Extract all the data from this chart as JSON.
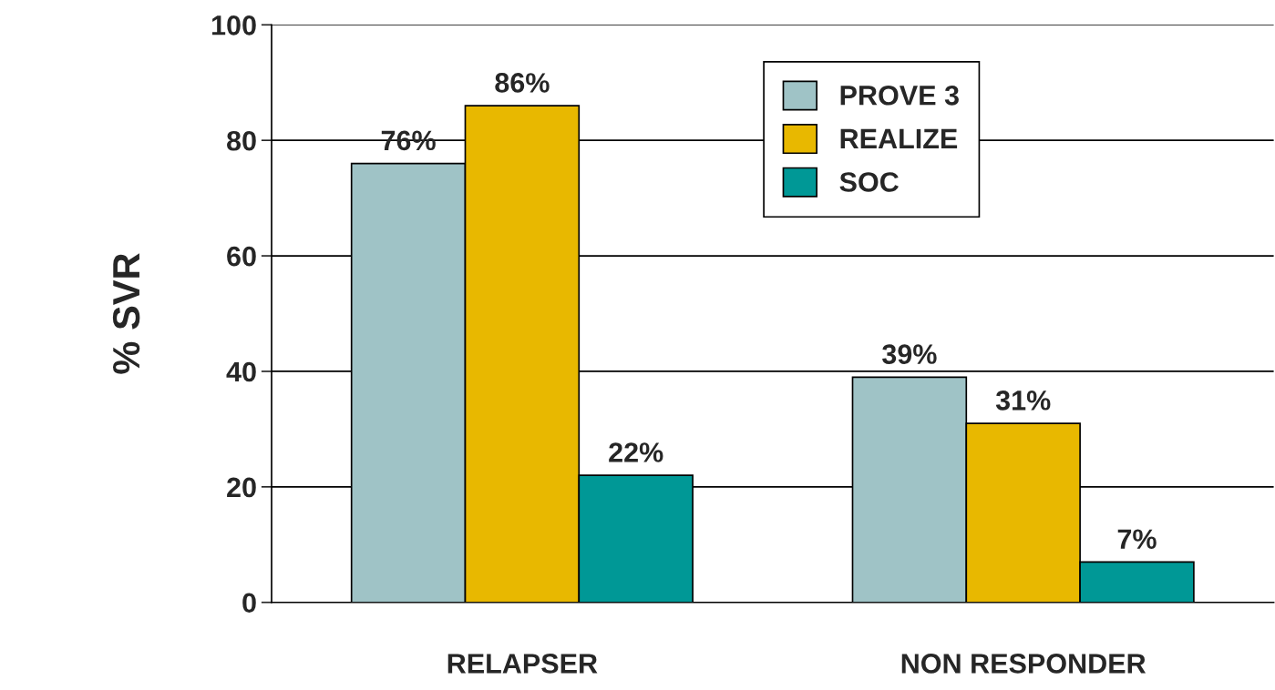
{
  "chart_data": {
    "type": "bar",
    "ylabel": "% SVR",
    "categories": [
      "RELAPSER",
      "NON RESPONDER"
    ],
    "series": [
      {
        "name": "PROVE 3",
        "color": "#9fc3c6",
        "values": [
          76,
          39
        ],
        "value_labels": [
          "76%",
          "39%"
        ]
      },
      {
        "name": "REALIZE",
        "color": "#e8b800",
        "values": [
          86,
          31
        ],
        "value_labels": [
          "86%",
          "31%"
        ]
      },
      {
        "name": "SOC",
        "color": "#009896",
        "values": [
          22,
          7
        ],
        "value_labels": [
          "22%",
          "7%"
        ]
      }
    ],
    "ylim": [
      0,
      100
    ],
    "yticks": [
      0,
      20,
      40,
      60,
      80,
      100
    ],
    "grid": "y",
    "legend": "top right"
  }
}
